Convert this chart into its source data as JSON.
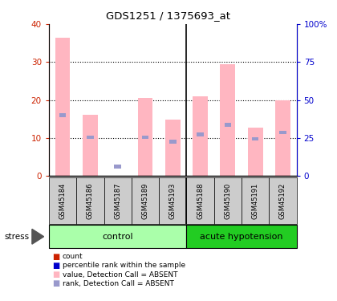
{
  "title": "GDS1251 / 1375693_at",
  "samples": [
    "GSM45184",
    "GSM45186",
    "GSM45187",
    "GSM45189",
    "GSM45193",
    "GSM45188",
    "GSM45190",
    "GSM45191",
    "GSM45192"
  ],
  "pink_values": [
    36.5,
    16.2,
    0.0,
    20.5,
    14.8,
    21.0,
    29.5,
    12.8,
    20.0
  ],
  "blue_values": [
    16.0,
    10.2,
    2.5,
    10.2,
    9.0,
    11.0,
    13.5,
    9.8,
    11.5
  ],
  "ylim_left": [
    0,
    40
  ],
  "ylim_right": [
    0,
    100
  ],
  "yticks_left": [
    0,
    10,
    20,
    30,
    40
  ],
  "yticks_right": [
    0,
    25,
    50,
    75,
    100
  ],
  "yticklabels_right": [
    "0",
    "25",
    "50",
    "75",
    "100%"
  ],
  "pink_color": "#ffb6c1",
  "blue_color": "#9999cc",
  "left_tick_color": "#cc2200",
  "right_tick_color": "#0000cc",
  "separation_index": 5,
  "control_color": "#aaffaa",
  "acute_color": "#22cc22",
  "label_box_color": "#cccccc",
  "legend_items": [
    {
      "color": "#cc2200",
      "label": "count"
    },
    {
      "color": "#0000cc",
      "label": "percentile rank within the sample"
    },
    {
      "color": "#ffb6c1",
      "label": "value, Detection Call = ABSENT"
    },
    {
      "color": "#9999cc",
      "label": "rank, Detection Call = ABSENT"
    }
  ]
}
